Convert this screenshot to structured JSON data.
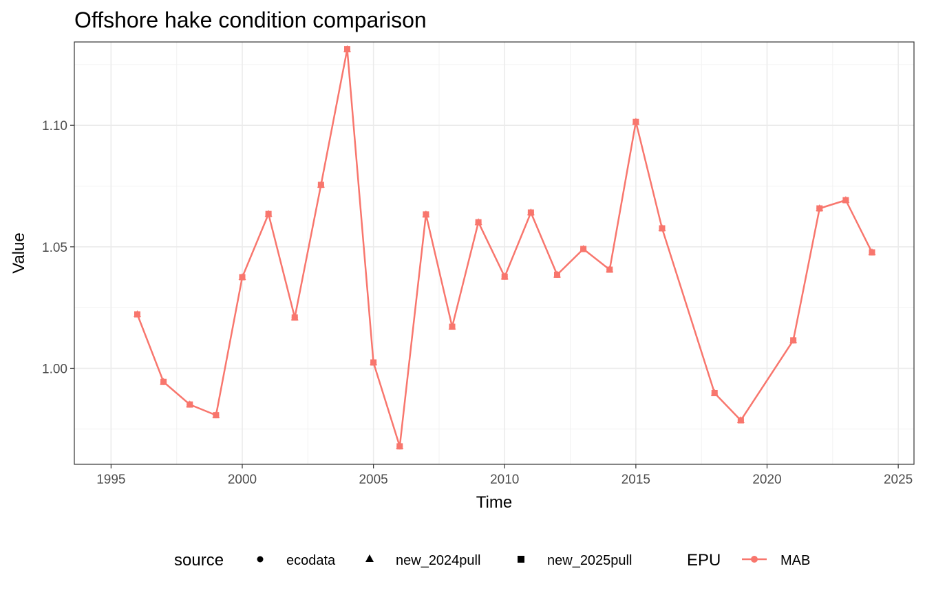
{
  "chart_data": {
    "type": "line",
    "title": "Offshore hake condition comparison",
    "xlabel": "Time",
    "ylabel": "Value",
    "xlim": [
      1993.6,
      2025.6
    ],
    "ylim": [
      0.9605,
      1.1343
    ],
    "x_ticks": [
      1995,
      2000,
      2005,
      2010,
      2015,
      2020,
      2025
    ],
    "y_ticks": [
      1.0,
      1.05,
      1.1
    ],
    "y_tick_labels": [
      "1.00",
      "1.05",
      "1.10"
    ],
    "grid": true,
    "legend_position": "bottom",
    "colors": {
      "MAB": "#F8766D"
    },
    "series": [
      {
        "name": "MAB",
        "x": [
          1996,
          1997,
          1998,
          1999,
          2000,
          2001,
          2002,
          2003,
          2004,
          2005,
          2006,
          2007,
          2008,
          2009,
          2010,
          2011,
          2012,
          2013,
          2014,
          2015,
          2016,
          2018,
          2019,
          2021,
          2022,
          2023,
          2024
        ],
        "y": [
          1.0222,
          0.9944,
          0.9851,
          0.9807,
          1.0375,
          1.0635,
          1.0209,
          1.0755,
          1.1313,
          1.0024,
          0.9679,
          1.0633,
          1.0171,
          1.0601,
          1.0377,
          1.0641,
          1.0385,
          1.0491,
          1.0406,
          1.1014,
          1.0576,
          0.9898,
          0.9786,
          1.0115,
          1.0658,
          1.0692,
          1.0477
        ]
      }
    ],
    "legends": [
      {
        "title": "source",
        "items": [
          {
            "label": "ecodata",
            "shape": "circle"
          },
          {
            "label": "new_2024pull",
            "shape": "triangle"
          },
          {
            "label": "new_2025pull",
            "shape": "square"
          }
        ]
      },
      {
        "title": "EPU",
        "items": [
          {
            "label": "MAB",
            "shape": "line-point"
          }
        ]
      }
    ]
  }
}
